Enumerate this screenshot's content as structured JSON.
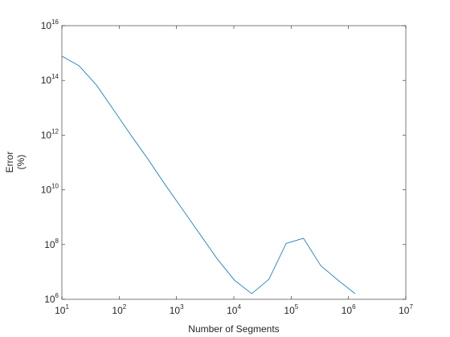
{
  "chart_data": {
    "type": "line",
    "xlabel": "Number of Segments",
    "ylabel": [
      "Error",
      "(%)"
    ],
    "xscale": "log",
    "yscale": "log",
    "box": true,
    "x": [
      10,
      20,
      40,
      80,
      160,
      320,
      640,
      1280,
      2560,
      5120,
      10240,
      20480,
      40960,
      81920,
      163840,
      327680,
      655360,
      1310720
    ],
    "series": [
      {
        "color": "#0072bd",
        "values": [
          770000000000000.0,
          340000000000000.0,
          68000000000000.0,
          8300000000000.0,
          1000000000000.0,
          130000000000.0,
          15000000000.0,
          1900000000.0,
          240000000.0,
          30000000.0,
          5000000.0,
          1600000.0,
          5400000.0,
          110000000.0,
          170000000.0,
          17000000.0,
          5000000.0,
          1600000.0
        ]
      }
    ],
    "xlim": [
      10,
      10000000
    ],
    "ylim": [
      1000000,
      10000000000000000
    ],
    "xticks": [
      {
        "value": 10,
        "label": "10",
        "exponent": "1"
      },
      {
        "value": 100,
        "label": "10",
        "exponent": "2"
      },
      {
        "value": 1000,
        "label": "10",
        "exponent": "3"
      },
      {
        "value": 10000,
        "label": "10",
        "exponent": "4"
      },
      {
        "value": 100000,
        "label": "10",
        "exponent": "5"
      },
      {
        "value": 1000000,
        "label": "10",
        "exponent": "6"
      },
      {
        "value": 10000000,
        "label": "10",
        "exponent": "7"
      }
    ],
    "yticks": [
      {
        "value": 1000000,
        "label": "10",
        "exponent": "6"
      },
      {
        "value": 100000000,
        "label": "10",
        "exponent": "8"
      },
      {
        "value": 10000000000,
        "label": "10",
        "exponent": "10"
      },
      {
        "value": 1000000000000,
        "label": "10",
        "exponent": "12"
      },
      {
        "value": 100000000000000,
        "label": "10",
        "exponent": "14"
      },
      {
        "value": 10000000000000000,
        "label": "10",
        "exponent": "16"
      }
    ]
  }
}
